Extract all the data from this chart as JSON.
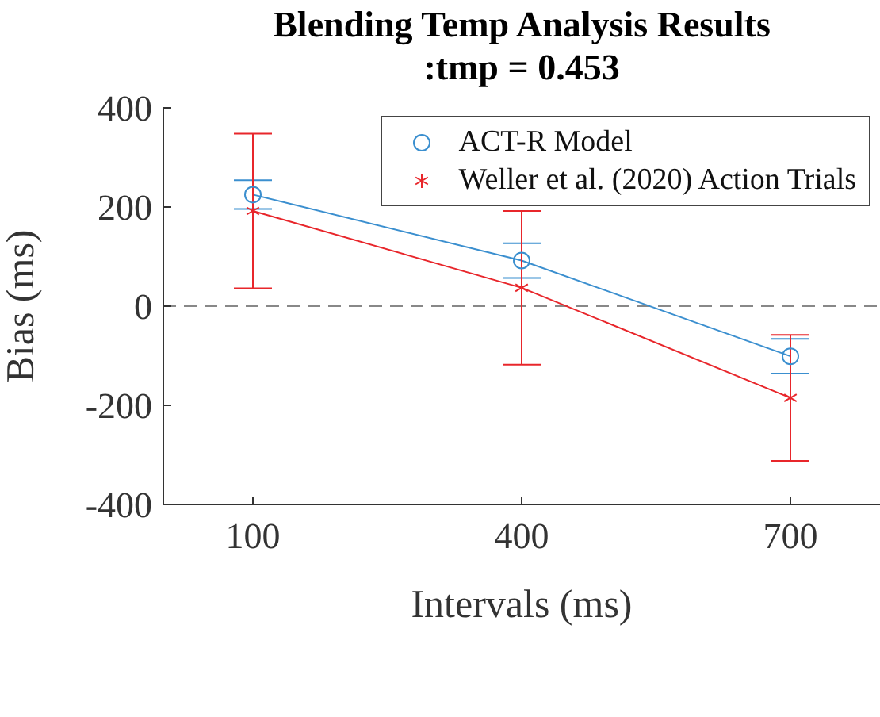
{
  "chart_data": {
    "type": "line",
    "title": "Blending Temp Analysis Results\n:tmp = 0.453",
    "xlabel": "Intervals (ms)",
    "ylabel": "Bias (ms)",
    "x": [
      100,
      400,
      700
    ],
    "series": [
      {
        "name": "ACT-R Model",
        "color": "#3b8fcf",
        "marker": "circle",
        "values": [
          225,
          92,
          -101
        ],
        "errors": [
          29,
          35,
          35
        ]
      },
      {
        "name": "Weller et al. (2020) Action Trials",
        "color": "#e8262b",
        "marker": "cross",
        "values": [
          192,
          37,
          -185
        ],
        "errors": [
          156,
          155,
          127
        ]
      }
    ],
    "xlim": [
      0,
      800
    ],
    "xticks": [
      100,
      400,
      700
    ],
    "ylim": [
      -400,
      400
    ],
    "yticks": [
      -400,
      -200,
      0,
      200,
      400
    ],
    "ref_lines": [
      {
        "axis": "y",
        "value": 0,
        "color": "#888888",
        "line_style": "dashed"
      }
    ],
    "legend": "top right",
    "grid": false,
    "line_style": "solid"
  }
}
